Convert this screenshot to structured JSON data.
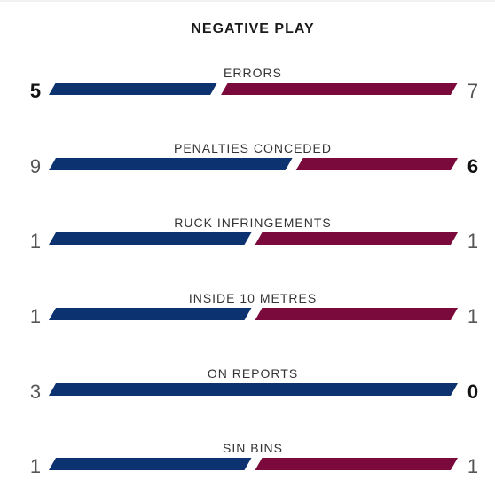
{
  "title": "NEGATIVE PLAY",
  "colors": {
    "home": "#0c3370",
    "away": "#7b0a3c"
  },
  "stats": [
    {
      "label": "ERRORS",
      "home": 5,
      "away": 7,
      "home_display": "5",
      "away_display": "7",
      "bold": "home"
    },
    {
      "label": "PENALTIES CONCEDED",
      "home": 9,
      "away": 6,
      "home_display": "9",
      "away_display": "6",
      "bold": "away"
    },
    {
      "label": "RUCK INFRINGEMENTS",
      "home": 1,
      "away": 1,
      "home_display": "1",
      "away_display": "1",
      "bold": "none"
    },
    {
      "label": "INSIDE 10 METRES",
      "home": 1,
      "away": 1,
      "home_display": "1",
      "away_display": "1",
      "bold": "none"
    },
    {
      "label": "ON REPORTS",
      "home": 3,
      "away": 0,
      "home_display": "3",
      "away_display": "0",
      "bold": "away"
    },
    {
      "label": "SIN BINS",
      "home": 1,
      "away": 1,
      "home_display": "1",
      "away_display": "1",
      "bold": "none"
    }
  ]
}
